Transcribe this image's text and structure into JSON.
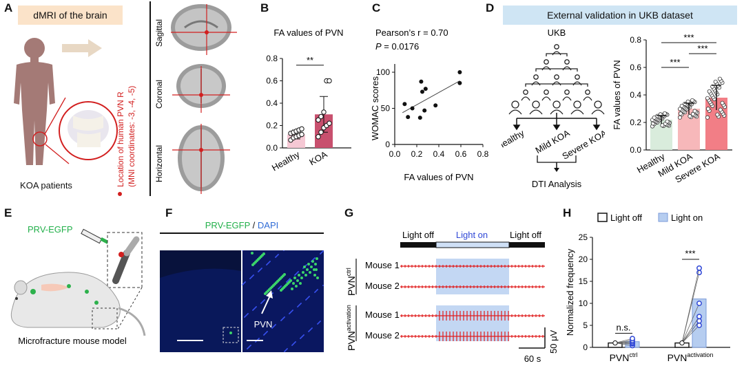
{
  "panel_labels": {
    "A": "A",
    "B": "B",
    "C": "C",
    "D": "D",
    "E": "E",
    "F": "F",
    "G": "G",
    "H": "H"
  },
  "panelA": {
    "title": "dMRI of the brain",
    "caption": "KOA patients",
    "planes": [
      "Sagittal",
      "Coronal",
      "Horizontal"
    ],
    "location_line1": "Location of human PVN R",
    "location_line2": "(MNI coordinates: -3, -4, -5)",
    "colors": {
      "title_bg": "#fbe3c9",
      "body": "#a47a76",
      "accent": "#d21f1f"
    }
  },
  "panelB": {
    "title": "FA values of PVN",
    "significance": "**",
    "chart_data": {
      "type": "bar",
      "categories": [
        "Healthy",
        "KOA"
      ],
      "values": [
        0.12,
        0.3
      ],
      "errors": [
        0.04,
        0.16
      ],
      "ylim": [
        0,
        0.8
      ],
      "yticks": [
        "0.0",
        "0.2",
        "0.4",
        "0.6",
        "0.8"
      ],
      "points": [
        [
          0.07,
          0.09,
          0.1,
          0.11,
          0.12,
          0.13,
          0.14,
          0.15,
          0.16,
          0.17
        ],
        [
          0.1,
          0.14,
          0.18,
          0.2,
          0.22,
          0.25,
          0.28,
          0.32,
          0.6,
          0.6
        ]
      ],
      "colors": [
        "#f5c8d4",
        "#c8506e"
      ]
    }
  },
  "panelC": {
    "stat1": "Pearson’s r = 0.70",
    "stat2_p": "P",
    "stat2_rest": " = 0.0176",
    "chart_data": {
      "type": "scatter",
      "xlabel": "FA values of PVN",
      "ylabel": "WOMAC scores",
      "xlim": [
        0.0,
        0.8
      ],
      "ylim": [
        0,
        100
      ],
      "xticks": [
        "0.0",
        "0.2",
        "0.4",
        "0.6",
        "0.8"
      ],
      "yticks": [
        "0",
        "50",
        "100"
      ],
      "x": [
        0.09,
        0.12,
        0.16,
        0.23,
        0.24,
        0.25,
        0.27,
        0.28,
        0.37,
        0.59,
        0.59
      ],
      "y": [
        56,
        38,
        50,
        37,
        87,
        73,
        47,
        77,
        54,
        100,
        85
      ],
      "fit": [
        [
          0.07,
          44
        ],
        [
          0.59,
          88
        ]
      ]
    }
  },
  "panelD": {
    "banner": "External validation in UKB dataset",
    "ukb": "UKB",
    "groups": [
      "Healthy",
      "Mild KOA",
      "Severe KOA"
    ],
    "analysis": "DTI Analysis",
    "sig": [
      "***",
      "***",
      "***"
    ],
    "chart_data": {
      "type": "bar",
      "ylabel": "FA values of PVN",
      "categories": [
        "Healthy",
        "Mild KOA",
        "Severe KOA"
      ],
      "values": [
        0.22,
        0.3,
        0.38
      ],
      "errors": [
        0.03,
        0.04,
        0.09
      ],
      "ylim": [
        0,
        0.8
      ],
      "yticks": [
        "0.0",
        "0.2",
        "0.4",
        "0.6",
        "0.8"
      ],
      "colors": [
        "#d9ecdc",
        "#f7b8ba",
        "#f27e86"
      ]
    },
    "colors": {
      "banner_bg": "#cfe5f4"
    }
  },
  "panelE": {
    "label": "PRV-EGFP",
    "caption": "Microfracture mouse model"
  },
  "panelF": {
    "title_green": "PRV-EGFP",
    "title_sep": " / ",
    "title_blue": "DAPI",
    "pvn": "PVN"
  },
  "panelG": {
    "light_off_1": "Light off",
    "light_on": "Light on",
    "light_off_2": "Light off",
    "group1": "PVN",
    "group1_sup": "ctrl",
    "group2": "PVN",
    "group2_sup": "activation",
    "traces": [
      "Mouse 1",
      "Mouse 2",
      "Mouse 1",
      "Mouse 2"
    ],
    "scale_y": "50 μV",
    "scale_x": "60 s"
  },
  "panelH": {
    "legend_off": "Light off",
    "legend_on": "Light on",
    "ns": "n.s.",
    "sig": "***",
    "chart_data": {
      "type": "bar",
      "ylabel": "Normalized frequency",
      "ylim": [
        0,
        25
      ],
      "yticks": [
        "0",
        "5",
        "10",
        "15",
        "20",
        "25"
      ],
      "groups": [
        "PVN ctrl",
        "PVN activation"
      ],
      "series": [
        {
          "name": "Light off",
          "values": [
            1,
            1
          ]
        },
        {
          "name": "Light on",
          "values": [
            1.3,
            11
          ]
        }
      ],
      "points_on": [
        [
          0.4,
          0.8,
          1.0,
          1.3,
          1.6,
          2.0
        ],
        [
          5,
          6,
          7,
          10,
          17,
          18
        ]
      ]
    },
    "x_main1": "PVN",
    "x_sup1": "ctrl",
    "x_main2": "PVN",
    "x_sup2": "activation"
  }
}
